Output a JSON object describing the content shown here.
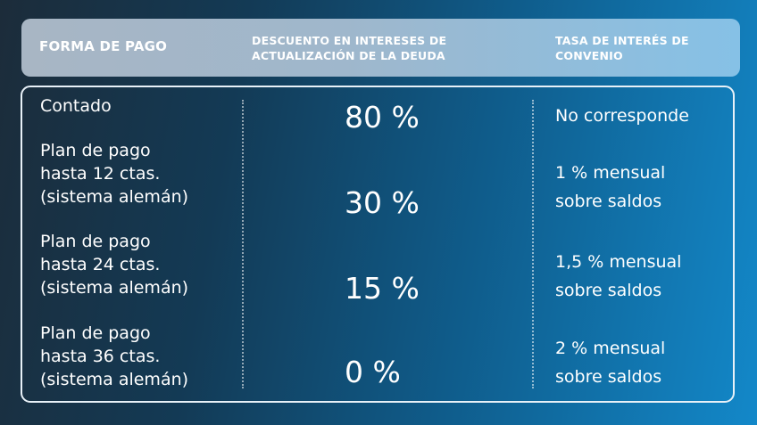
{
  "header": {
    "col1": "FORMA DE PAGO",
    "col2": "DESCUENTO EN INTERESES DE ACTUALIZACIÓN DE LA DEUDA",
    "col3": "TASA DE INTERÉS DE CONVENIO"
  },
  "rows": [
    {
      "method": "Contado",
      "discount": "80 %",
      "rate": "No corresponde"
    },
    {
      "method": "Plan de pago\nhasta 12 ctas.\n(sistema alemán)",
      "discount": "30 %",
      "rate": "1 % mensual\nsobre saldos"
    },
    {
      "method": "Plan de pago\nhasta 24 ctas.\n(sistema alemán)",
      "discount": "15 %",
      "rate": "1,5 % mensual\nsobre saldos"
    },
    {
      "method": "Plan de pago\nhasta 36 ctas.\n(sistema alemán)",
      "discount": "0 %",
      "rate": "2 % mensual\nsobre saldos"
    }
  ]
}
